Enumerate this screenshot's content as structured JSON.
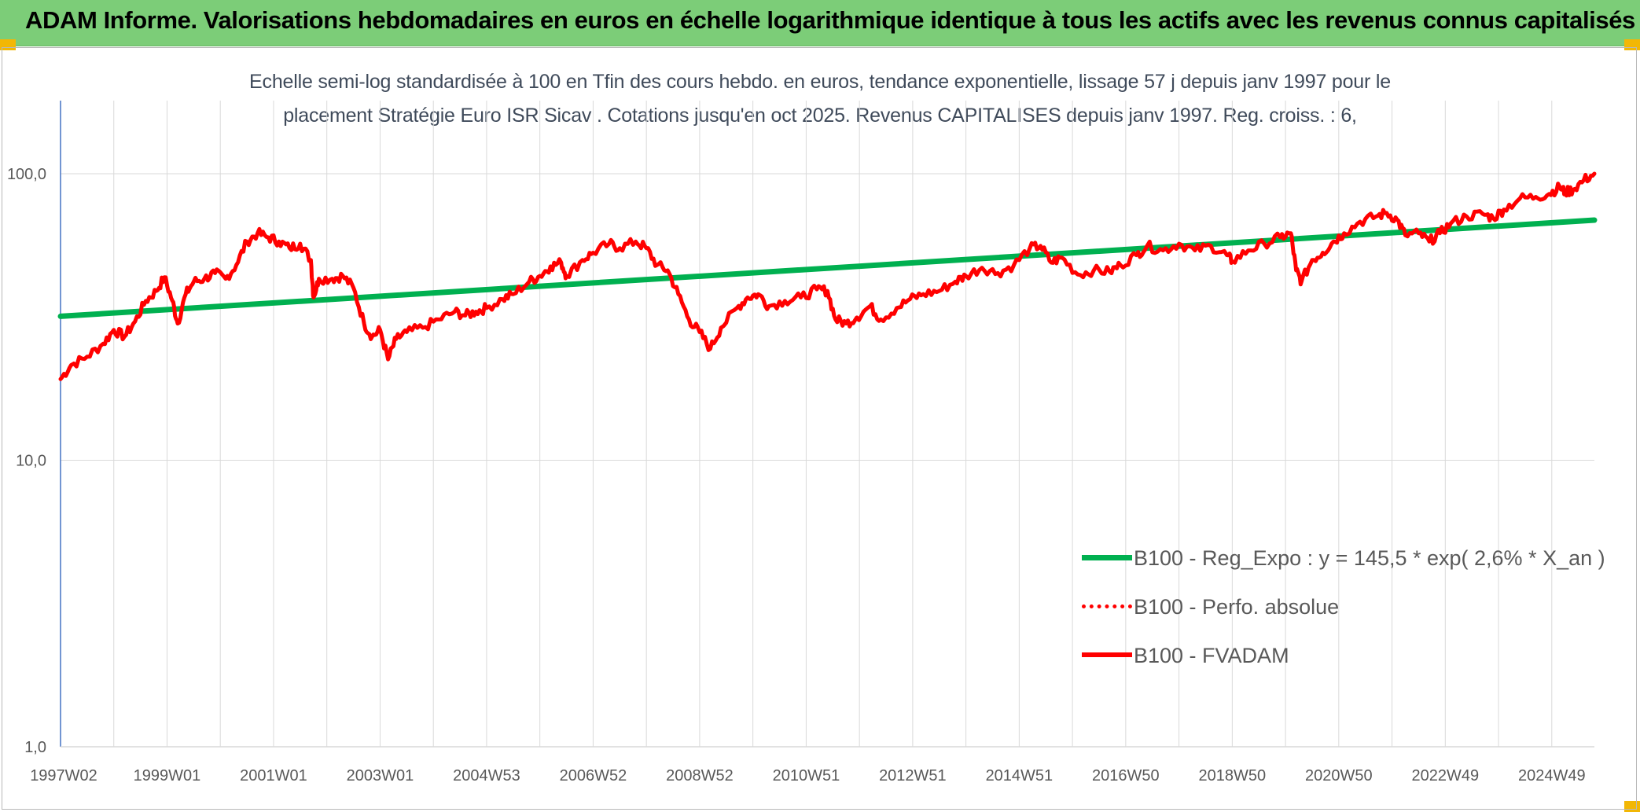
{
  "header": {
    "title": "ADAM Informe. Valorisations hebdomadaires en euros en échelle logarithmique identique à tous les actifs avec les revenus connus capitalisés"
  },
  "colors": {
    "banner": "#7ccd78",
    "trend": "#00b050",
    "fvadam": "#ff0000",
    "perf": "#ff0000",
    "grid": "#d9d9d9",
    "corner": "#f2b705"
  },
  "chart_data": {
    "type": "line",
    "title_lines": [
      "Echelle semi-log standardisée à 100 en Tfin des cours hebdo. en euros, tendance exponentielle, lissage 57 j depuis janv 1997 pour le",
      "placement Stratégie Euro ISR Sicav . Cotations jusqu'en oct 2025. Revenus CAPITALISES depuis janv 1997. Reg. croiss. : 6,"
    ],
    "y_scale": "log",
    "ylim": [
      1,
      180
    ],
    "y_ticks": [
      1,
      10,
      100
    ],
    "y_tick_labels": [
      "1,0",
      "10,0",
      "100,0"
    ],
    "xlim": [
      1997.0,
      2025.8
    ],
    "x_ticks": [
      1997.0,
      1999.0,
      2001.0,
      2003.0,
      2005.0,
      2007.0,
      2009.0,
      2011.0,
      2013.0,
      2015.0,
      2017.0,
      2019.0,
      2021.0,
      2023.0,
      2025.0
    ],
    "x_tick_labels": [
      "1997W02",
      "1999W01",
      "2001W01",
      "2003W01",
      "2004W53",
      "2006W52",
      "2008W52",
      "2010W51",
      "2012W51",
      "2014W51",
      "2016W50",
      "2018W50",
      "2020W50",
      "2022W49",
      "2024W49"
    ],
    "grid": true,
    "legend_position": "lower-right",
    "series": [
      {
        "name": "B100 - Reg_Expo : y = 145,5 * exp( 2,6% *  X_an )",
        "style": "solid-thick",
        "points": [
          [
            1997.0,
            31.8
          ],
          [
            2025.8,
            68.9
          ]
        ]
      },
      {
        "name": "B100 - Perfo. absolue",
        "style": "dotted",
        "points": []
      },
      {
        "name": "B100 - FVADAM",
        "style": "solid",
        "points": [
          [
            1997.0,
            19.2
          ],
          [
            1997.2,
            21.5
          ],
          [
            1997.5,
            23.0
          ],
          [
            1997.8,
            25.5
          ],
          [
            1998.0,
            28.5
          ],
          [
            1998.2,
            27.0
          ],
          [
            1998.4,
            30.5
          ],
          [
            1998.6,
            36.0
          ],
          [
            1998.8,
            39.0
          ],
          [
            1998.95,
            43.5
          ],
          [
            1999.1,
            36.0
          ],
          [
            1999.2,
            30.0
          ],
          [
            1999.35,
            38.0
          ],
          [
            1999.5,
            42.0
          ],
          [
            1999.7,
            43.0
          ],
          [
            1999.9,
            45.0
          ],
          [
            2000.1,
            43.0
          ],
          [
            2000.3,
            48.0
          ],
          [
            2000.5,
            58.0
          ],
          [
            2000.7,
            62.0
          ],
          [
            2000.9,
            60.0
          ],
          [
            2001.1,
            58.0
          ],
          [
            2001.3,
            55.0
          ],
          [
            2001.5,
            57.0
          ],
          [
            2001.7,
            50.0
          ],
          [
            2001.75,
            37.0
          ],
          [
            2001.85,
            43.0
          ],
          [
            2002.1,
            43.0
          ],
          [
            2002.3,
            44.0
          ],
          [
            2002.5,
            40.0
          ],
          [
            2002.7,
            30.0
          ],
          [
            2002.85,
            27.0
          ],
          [
            2003.0,
            28.5
          ],
          [
            2003.15,
            22.5
          ],
          [
            2003.3,
            26.5
          ],
          [
            2003.5,
            28.0
          ],
          [
            2003.8,
            29.0
          ],
          [
            2004.1,
            31.0
          ],
          [
            2004.4,
            33.0
          ],
          [
            2004.6,
            32.0
          ],
          [
            2004.8,
            33.0
          ],
          [
            2005.0,
            34.0
          ],
          [
            2005.3,
            36.5
          ],
          [
            2005.5,
            38.0
          ],
          [
            2005.8,
            42.0
          ],
          [
            2006.0,
            44.0
          ],
          [
            2006.2,
            47.5
          ],
          [
            2006.4,
            49.0
          ],
          [
            2006.5,
            44.0
          ],
          [
            2006.8,
            50.0
          ],
          [
            2007.0,
            53.0
          ],
          [
            2007.3,
            57.0
          ],
          [
            2007.5,
            55.0
          ],
          [
            2007.8,
            58.0
          ],
          [
            2008.0,
            55.0
          ],
          [
            2008.2,
            48.0
          ],
          [
            2008.4,
            46.0
          ],
          [
            2008.6,
            38.0
          ],
          [
            2008.8,
            31.0
          ],
          [
            2009.0,
            28.0
          ],
          [
            2009.2,
            24.5
          ],
          [
            2009.4,
            29.0
          ],
          [
            2009.7,
            34.0
          ],
          [
            2009.9,
            37.0
          ],
          [
            2010.1,
            38.0
          ],
          [
            2010.3,
            34.5
          ],
          [
            2010.6,
            36.0
          ],
          [
            2010.9,
            37.0
          ],
          [
            2011.2,
            39.5
          ],
          [
            2011.4,
            39.0
          ],
          [
            2011.55,
            31.0
          ],
          [
            2011.75,
            30.0
          ],
          [
            2011.95,
            31.5
          ],
          [
            2012.2,
            34.5
          ],
          [
            2012.4,
            31.0
          ],
          [
            2012.7,
            34.0
          ],
          [
            2012.95,
            36.5
          ],
          [
            2013.2,
            38.0
          ],
          [
            2013.5,
            39.0
          ],
          [
            2013.8,
            42.0
          ],
          [
            2014.0,
            44.0
          ],
          [
            2014.3,
            47.0
          ],
          [
            2014.6,
            45.0
          ],
          [
            2014.9,
            48.0
          ],
          [
            2015.2,
            55.0
          ],
          [
            2015.4,
            56.0
          ],
          [
            2015.6,
            49.0
          ],
          [
            2015.8,
            51.0
          ],
          [
            2016.1,
            44.5
          ],
          [
            2016.4,
            46.0
          ],
          [
            2016.7,
            45.5
          ],
          [
            2016.9,
            48.0
          ],
          [
            2017.2,
            52.0
          ],
          [
            2017.4,
            56.0
          ],
          [
            2017.7,
            54.0
          ],
          [
            2018.0,
            57.0
          ],
          [
            2018.3,
            54.0
          ],
          [
            2018.6,
            56.0
          ],
          [
            2018.9,
            52.0
          ],
          [
            2019.0,
            49.5
          ],
          [
            2019.3,
            54.0
          ],
          [
            2019.6,
            57.0
          ],
          [
            2019.9,
            60.0
          ],
          [
            2020.1,
            62.0
          ],
          [
            2020.2,
            46.0
          ],
          [
            2020.3,
            42.0
          ],
          [
            2020.5,
            50.0
          ],
          [
            2020.7,
            53.0
          ],
          [
            2020.9,
            58.0
          ],
          [
            2021.1,
            62.0
          ],
          [
            2021.4,
            68.0
          ],
          [
            2021.7,
            71.0
          ],
          [
            2021.9,
            73.0
          ],
          [
            2022.1,
            69.0
          ],
          [
            2022.25,
            61.0
          ],
          [
            2022.5,
            62.0
          ],
          [
            2022.7,
            58.0
          ],
          [
            2022.9,
            62.0
          ],
          [
            2023.1,
            67.0
          ],
          [
            2023.4,
            71.0
          ],
          [
            2023.7,
            72.5
          ],
          [
            2023.9,
            70.0
          ],
          [
            2024.1,
            75.0
          ],
          [
            2024.4,
            82.0
          ],
          [
            2024.7,
            83.0
          ],
          [
            2024.95,
            85.0
          ],
          [
            2025.15,
            90.0
          ],
          [
            2025.25,
            86.0
          ],
          [
            2025.4,
            88.0
          ],
          [
            2025.6,
            95.0
          ],
          [
            2025.8,
            100.0
          ]
        ]
      }
    ]
  }
}
